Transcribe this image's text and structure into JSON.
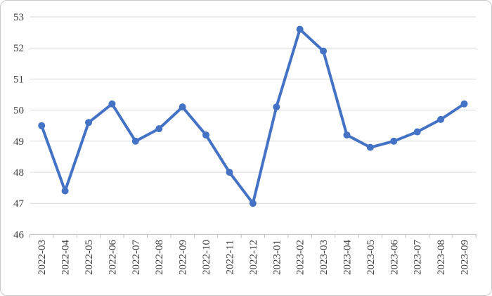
{
  "chart_data": {
    "type": "line",
    "title": "",
    "xlabel": "",
    "ylabel": "",
    "categories": [
      "2022-03",
      "2022-04",
      "2022-05",
      "2022-06",
      "2022-07",
      "2022-08",
      "2022-09",
      "2022-10",
      "2022-11",
      "2022-12",
      "2023-01",
      "2023-02",
      "2023-03",
      "2023-04",
      "2023-05",
      "2023-06",
      "2023-07",
      "2023-08",
      "2023-09"
    ],
    "series": [
      {
        "name": "",
        "values": [
          49.5,
          47.4,
          49.6,
          50.2,
          49.0,
          49.4,
          50.1,
          49.2,
          48.0,
          47.0,
          50.1,
          52.6,
          51.9,
          49.2,
          48.8,
          49.0,
          49.3,
          49.7,
          50.2
        ]
      }
    ],
    "ylim": [
      46,
      53
    ],
    "ytick_step": 1,
    "ytick_labels": [
      "46",
      "47",
      "48",
      "49",
      "50",
      "51",
      "52",
      "53"
    ],
    "grid": true,
    "legend_position": "none",
    "marker": "circle"
  },
  "colors": {
    "line": "#4472C4",
    "marker": "#4472C4",
    "gridline": "#D9D9D9",
    "axis_line": "#BFBFBF",
    "tick_text": "#404040",
    "card_border": "#C9C9CE",
    "background": "#FFFFFF"
  }
}
